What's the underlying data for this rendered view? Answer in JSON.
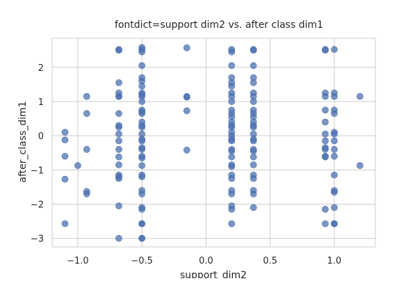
{
  "chart_data": {
    "type": "scatter",
    "title": "fontdict=support dim2 vs. after class dim1",
    "xlabel": "support_dim2",
    "ylabel": "after_class_dim1",
    "xlim": [
      -1.2,
      1.32
    ],
    "ylim": [
      -3.25,
      2.85
    ],
    "xticks": [
      -1.0,
      -0.5,
      0.0,
      0.5,
      1.0
    ],
    "xtick_labels": [
      "−1.0",
      "−0.5",
      "0.0",
      "0.5",
      "1.0"
    ],
    "yticks": [
      -3,
      -2,
      -1,
      0,
      1,
      2
    ],
    "ytick_labels": [
      "−3",
      "−2",
      "−1",
      "0",
      "1",
      "2"
    ],
    "grid": true,
    "marker_color": "#4c72b0",
    "points": [
      [
        -1.1,
        0.1
      ],
      [
        -1.1,
        -0.12
      ],
      [
        -1.1,
        -0.6
      ],
      [
        -1.1,
        -1.27
      ],
      [
        -1.1,
        -2.57
      ],
      [
        -1.0,
        -0.87
      ],
      [
        -0.93,
        1.15
      ],
      [
        -0.93,
        0.65
      ],
      [
        -0.93,
        -0.4
      ],
      [
        -0.93,
        -1.63
      ],
      [
        -0.93,
        -1.7
      ],
      [
        -0.68,
        2.52
      ],
      [
        -0.68,
        2.5
      ],
      [
        -0.68,
        1.55
      ],
      [
        -0.68,
        1.25
      ],
      [
        -0.68,
        1.15
      ],
      [
        -0.68,
        1.15
      ],
      [
        -0.68,
        0.65
      ],
      [
        -0.68,
        0.3
      ],
      [
        -0.68,
        0.25
      ],
      [
        -0.68,
        0.05
      ],
      [
        -0.68,
        -0.15
      ],
      [
        -0.68,
        -0.4
      ],
      [
        -0.68,
        -0.62
      ],
      [
        -0.68,
        -0.85
      ],
      [
        -0.68,
        -1.15
      ],
      [
        -0.68,
        -1.2
      ],
      [
        -0.68,
        -1.25
      ],
      [
        -0.68,
        -2.05
      ],
      [
        -0.68,
        -3.0
      ],
      [
        -0.5,
        2.58
      ],
      [
        -0.5,
        2.52
      ],
      [
        -0.5,
        2.45
      ],
      [
        -0.5,
        2.05
      ],
      [
        -0.5,
        1.7
      ],
      [
        -0.5,
        1.6
      ],
      [
        -0.5,
        1.45
      ],
      [
        -0.5,
        1.25
      ],
      [
        -0.5,
        1.2
      ],
      [
        -0.5,
        1.15
      ],
      [
        -0.5,
        1.0
      ],
      [
        -0.5,
        0.75
      ],
      [
        -0.5,
        0.7
      ],
      [
        -0.5,
        0.65
      ],
      [
        -0.5,
        0.4
      ],
      [
        -0.5,
        0.3
      ],
      [
        -0.5,
        0.25
      ],
      [
        -0.5,
        0.05
      ],
      [
        -0.5,
        -0.1
      ],
      [
        -0.5,
        -0.15
      ],
      [
        -0.5,
        -0.35
      ],
      [
        -0.5,
        -0.4
      ],
      [
        -0.5,
        -0.6
      ],
      [
        -0.5,
        -0.65
      ],
      [
        -0.5,
        -0.87
      ],
      [
        -0.5,
        -1.15
      ],
      [
        -0.5,
        -1.2
      ],
      [
        -0.5,
        -1.6
      ],
      [
        -0.5,
        -1.7
      ],
      [
        -0.5,
        -2.1
      ],
      [
        -0.5,
        -2.15
      ],
      [
        -0.5,
        -2.57
      ],
      [
        -0.5,
        -2.57
      ],
      [
        -0.5,
        -3.0
      ],
      [
        -0.5,
        -3.0
      ],
      [
        -0.15,
        2.57
      ],
      [
        -0.15,
        1.15
      ],
      [
        -0.15,
        1.13
      ],
      [
        -0.15,
        0.73
      ],
      [
        -0.15,
        -0.42
      ],
      [
        0.2,
        2.52
      ],
      [
        0.2,
        2.45
      ],
      [
        0.2,
        2.05
      ],
      [
        0.2,
        1.7
      ],
      [
        0.2,
        1.55
      ],
      [
        0.2,
        1.45
      ],
      [
        0.2,
        1.25
      ],
      [
        0.2,
        1.15
      ],
      [
        0.2,
        1.0
      ],
      [
        0.2,
        0.75
      ],
      [
        0.2,
        0.65
      ],
      [
        0.2,
        0.55
      ],
      [
        0.2,
        0.4
      ],
      [
        0.2,
        0.3
      ],
      [
        0.2,
        0.25
      ],
      [
        0.2,
        0.1
      ],
      [
        0.2,
        0.0
      ],
      [
        0.2,
        -0.1
      ],
      [
        0.2,
        -0.15
      ],
      [
        0.2,
        -0.4
      ],
      [
        0.2,
        -0.45
      ],
      [
        0.2,
        -0.62
      ],
      [
        0.2,
        -0.85
      ],
      [
        0.2,
        -0.9
      ],
      [
        0.2,
        -1.15
      ],
      [
        0.2,
        -1.25
      ],
      [
        0.2,
        -1.6
      ],
      [
        0.2,
        -1.7
      ],
      [
        0.2,
        -2.05
      ],
      [
        0.2,
        -2.15
      ],
      [
        0.2,
        -2.57
      ],
      [
        0.37,
        2.52
      ],
      [
        0.37,
        2.5
      ],
      [
        0.37,
        2.05
      ],
      [
        0.37,
        1.7
      ],
      [
        0.37,
        1.55
      ],
      [
        0.37,
        1.25
      ],
      [
        0.37,
        1.15
      ],
      [
        0.37,
        1.0
      ],
      [
        0.37,
        0.75
      ],
      [
        0.37,
        0.65
      ],
      [
        0.37,
        0.55
      ],
      [
        0.37,
        0.4
      ],
      [
        0.37,
        0.3
      ],
      [
        0.37,
        0.25
      ],
      [
        0.37,
        0.05
      ],
      [
        0.37,
        -0.1
      ],
      [
        0.37,
        -0.15
      ],
      [
        0.37,
        -0.4
      ],
      [
        0.37,
        -0.45
      ],
      [
        0.37,
        -0.62
      ],
      [
        0.37,
        -0.85
      ],
      [
        0.37,
        -1.15
      ],
      [
        0.37,
        -1.25
      ],
      [
        0.37,
        -1.6
      ],
      [
        0.37,
        -1.7
      ],
      [
        0.37,
        -2.1
      ],
      [
        0.93,
        2.52
      ],
      [
        0.93,
        2.5
      ],
      [
        0.93,
        1.25
      ],
      [
        0.93,
        1.15
      ],
      [
        0.93,
        0.75
      ],
      [
        0.93,
        0.4
      ],
      [
        0.93,
        0.05
      ],
      [
        0.93,
        -0.15
      ],
      [
        0.93,
        -0.35
      ],
      [
        0.93,
        -0.4
      ],
      [
        0.93,
        -0.6
      ],
      [
        0.93,
        -0.62
      ],
      [
        0.93,
        -2.15
      ],
      [
        0.93,
        -2.57
      ],
      [
        1.0,
        2.52
      ],
      [
        1.0,
        1.25
      ],
      [
        1.0,
        1.15
      ],
      [
        1.0,
        0.75
      ],
      [
        1.0,
        0.65
      ],
      [
        1.0,
        0.1
      ],
      [
        1.0,
        0.05
      ],
      [
        1.0,
        -0.15
      ],
      [
        1.0,
        -0.4
      ],
      [
        1.0,
        -0.6
      ],
      [
        1.0,
        -1.15
      ],
      [
        1.0,
        -1.6
      ],
      [
        1.0,
        -1.65
      ],
      [
        1.0,
        -2.1
      ],
      [
        1.0,
        -2.57
      ],
      [
        1.0,
        -2.57
      ],
      [
        1.2,
        1.15
      ],
      [
        1.2,
        -0.87
      ]
    ]
  }
}
